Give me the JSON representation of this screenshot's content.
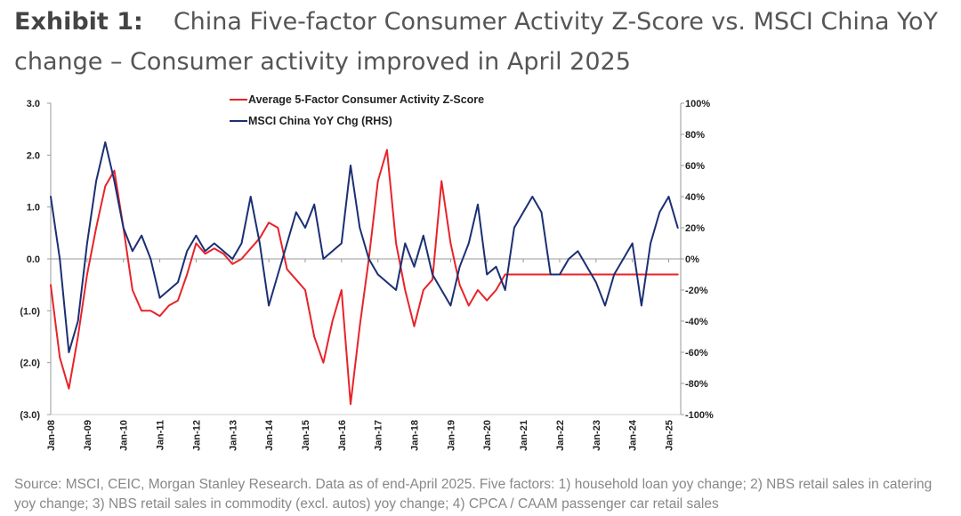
{
  "header": {
    "exhibit_label": "Exhibit 1:",
    "title": "China Five-factor Consumer Activity Z-Score vs. MSCI China YoY change – Consumer activity improved in April 2025"
  },
  "chart_data": {
    "type": "line",
    "title": "China Five-factor Consumer Activity Z-Score vs. MSCI China YoY change",
    "x_start": 2008.0,
    "x_end": 2025.33,
    "x_step_years": 0.25,
    "xtick_labels": [
      "Jan-08",
      "Jan-09",
      "Jan-10",
      "Jan-11",
      "Jan-12",
      "Jan-13",
      "Jan-14",
      "Jan-15",
      "Jan-16",
      "Jan-17",
      "Jan-18",
      "Jan-19",
      "Jan-20",
      "Jan-21",
      "Jan-22",
      "Jan-23",
      "Jan-24",
      "Jan-25"
    ],
    "left_axis": {
      "ylim": [
        -3.0,
        3.0
      ],
      "tick_values": [
        3,
        2,
        1,
        0,
        -1,
        -2,
        -3
      ],
      "tick_labels": [
        "3.0",
        "2.0",
        "1.0",
        "0.0",
        "(1.0)",
        "(2.0)",
        "(3.0)"
      ]
    },
    "right_axis": {
      "ylim": [
        -100,
        100
      ],
      "tick_values": [
        100,
        80,
        60,
        40,
        20,
        0,
        -20,
        -40,
        -60,
        -80,
        -100
      ],
      "tick_labels": [
        "100%",
        "80%",
        "60%",
        "40%",
        "20%",
        "0%",
        "-20%",
        "-40%",
        "-60%",
        "-80%",
        "-100%"
      ]
    },
    "series": [
      {
        "name": "Average 5-Factor Consumer Activity Z-Score",
        "axis": "left",
        "color": "#e8232a",
        "values": [
          -0.5,
          -1.9,
          -2.5,
          -1.5,
          -0.3,
          0.6,
          1.4,
          1.7,
          0.6,
          -0.6,
          -1.0,
          -1.0,
          -1.1,
          -0.9,
          -0.8,
          -0.3,
          0.3,
          0.1,
          0.2,
          0.1,
          -0.1,
          0.0,
          0.2,
          0.4,
          0.7,
          0.6,
          -0.2,
          -0.4,
          -0.6,
          -1.5,
          -2.0,
          -1.2,
          -0.6,
          -2.8,
          -1.3,
          0.0,
          1.5,
          2.1,
          0.3,
          -0.6,
          -1.3,
          -0.6,
          -0.4,
          1.5,
          0.3,
          -0.5,
          -0.9,
          -0.6,
          -0.8,
          -0.6,
          -0.3,
          -0.3,
          -0.3,
          -0.3,
          -0.3,
          -0.3,
          -0.3,
          -0.3,
          -0.3,
          -0.3,
          -0.3,
          -0.3,
          -0.3,
          -0.3,
          -0.3,
          -0.3,
          -0.3,
          -0.3,
          -0.3,
          -0.3
        ]
      },
      {
        "name": "MSCI China YoY Chg (RHS)",
        "axis": "right",
        "color": "#1b2f73",
        "values": [
          40,
          0,
          -60,
          -40,
          10,
          50,
          75,
          50,
          20,
          5,
          15,
          0,
          -25,
          -20,
          -15,
          5,
          15,
          5,
          10,
          5,
          0,
          10,
          40,
          10,
          -30,
          -10,
          10,
          30,
          20,
          35,
          0,
          5,
          10,
          60,
          20,
          0,
          -10,
          -15,
          -20,
          10,
          -5,
          15,
          -10,
          -20,
          -30,
          -5,
          10,
          35,
          -10,
          -5,
          -20,
          20,
          30,
          40,
          30,
          -10,
          -10,
          0,
          5,
          -5,
          -15,
          -30,
          -10,
          0,
          10,
          -30,
          10,
          30,
          40,
          20
        ]
      }
    ],
    "legend_position": "top-center"
  },
  "source_note": "Source: MSCI, CEIC, Morgan Stanley Research. Data as of end-April 2025. Five factors: 1) household loan yoy change; 2) NBS retail sales in catering yoy change; 3) NBS retail sales in commodity (excl. autos) yoy change; 4) CPCA / CAAM passenger car retail sales"
}
